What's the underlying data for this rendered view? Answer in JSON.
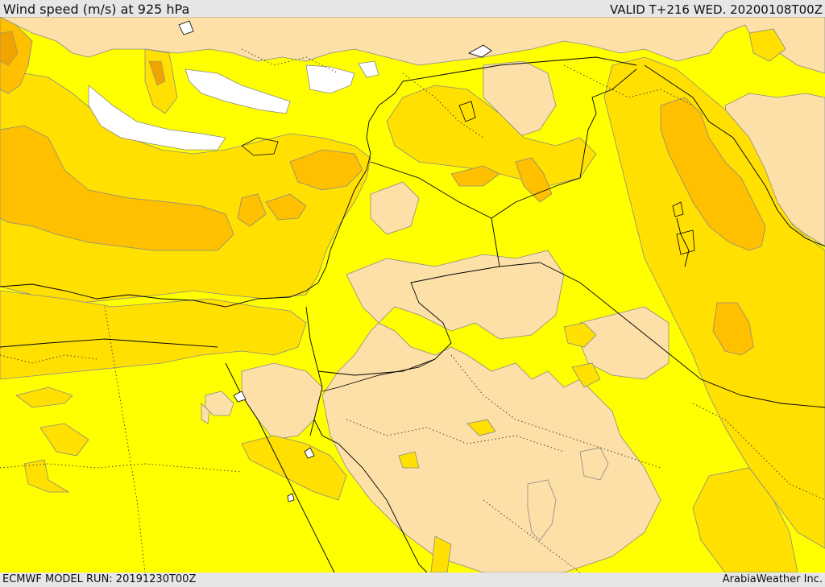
{
  "header": {
    "title": "Wind speed (m/s) at 925 hPa",
    "valid": "VALID T+216 WED. 20200108T00Z"
  },
  "footer": {
    "model_run": "ECMWF MODEL RUN: 20191230T00Z",
    "credit": "ArabiaWeather Inc."
  },
  "map": {
    "colors": {
      "calm": "#ffffff",
      "light": "#fde0a8",
      "moderate": "#ffff00",
      "fresh": "#ffe000",
      "strong": "#ffc000",
      "very_strong": "#f0a400",
      "outline": "#808080",
      "border": "#000000"
    }
  }
}
